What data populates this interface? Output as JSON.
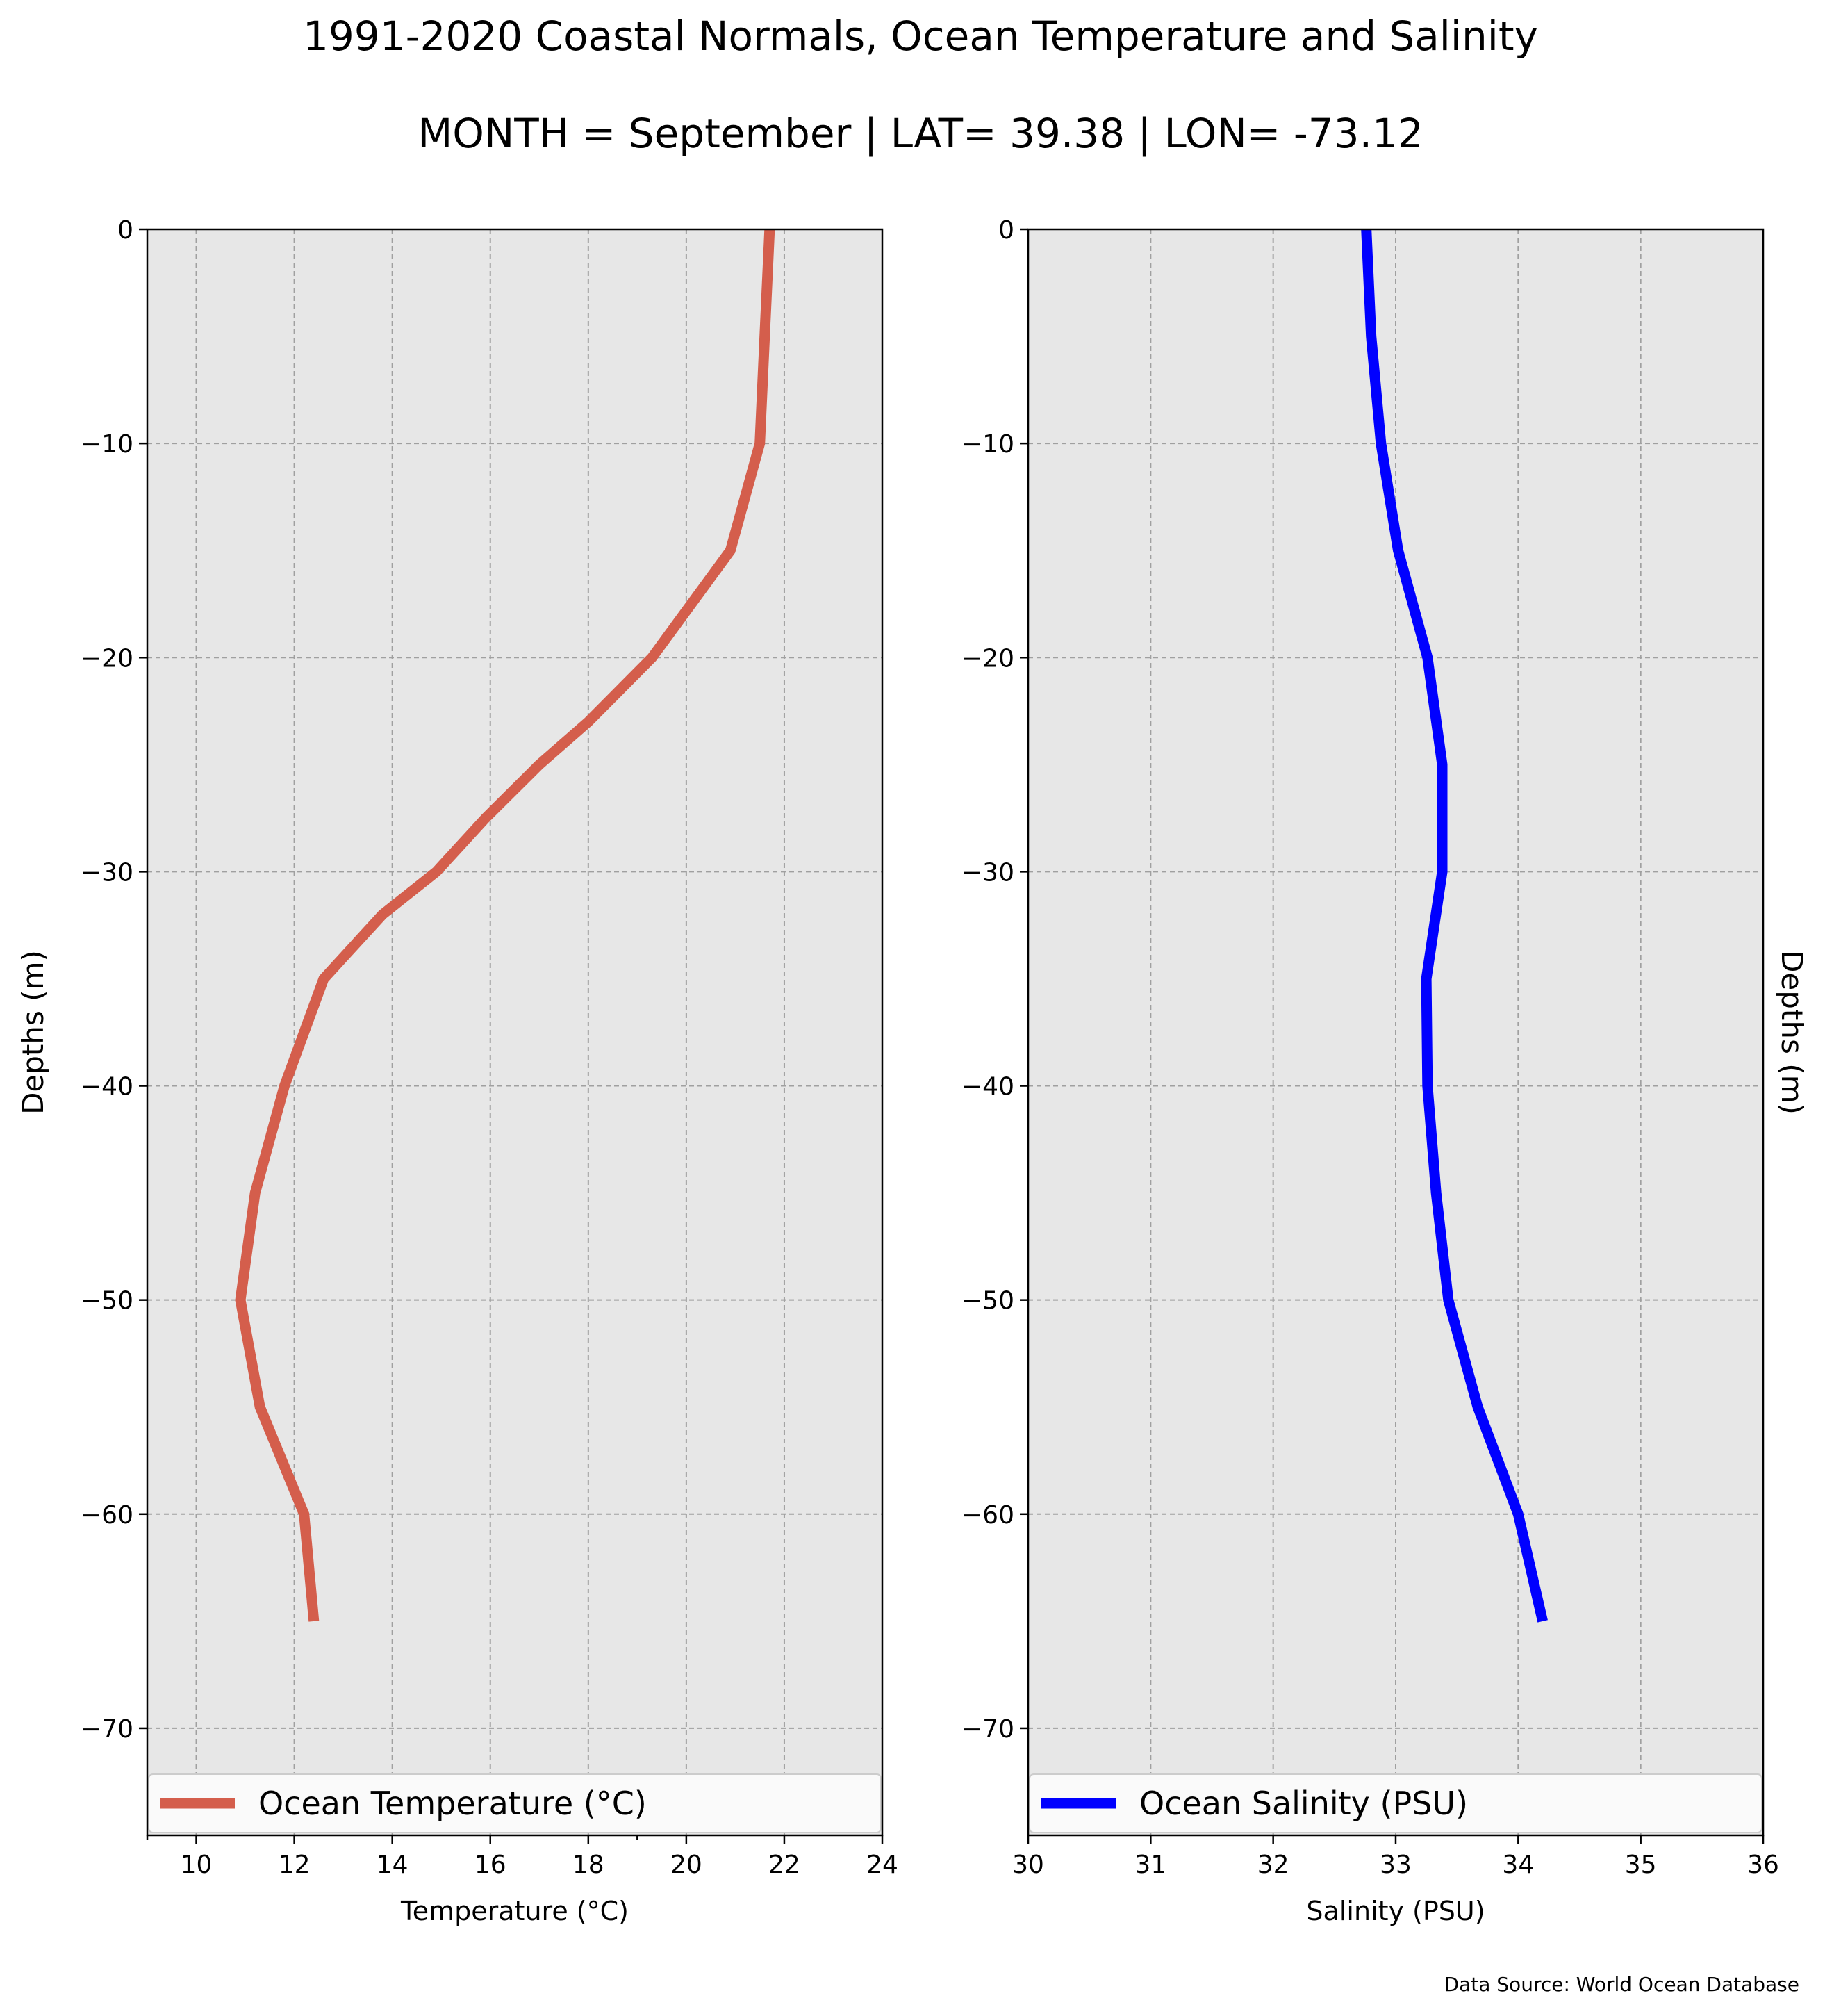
{
  "title": "1991-2020 Coastal Normals, Ocean Temperature and Salinity",
  "subtitle": "MONTH = September | LAT= 39.38 | LON= -73.12",
  "source": "Data Source: World Ocean Database",
  "chart_data": [
    {
      "type": "line",
      "xlabel": "Temperature (°C)",
      "ylabel": "Depths (m)",
      "xlim": [
        9,
        24
      ],
      "ylim": [
        -75,
        0
      ],
      "xticks": [
        10,
        12,
        14,
        16,
        18,
        20,
        22,
        24
      ],
      "minor_xticks": [
        9,
        19
      ],
      "yticks": [
        0,
        -10,
        -20,
        -30,
        -40,
        -50,
        -60,
        -70
      ],
      "ytick_labels": [
        "0",
        "−10",
        "−20",
        "−30",
        "−40",
        "−50",
        "−60",
        "−70"
      ],
      "grid": true,
      "legend": "lower center",
      "ylabel_side": "left",
      "series": [
        {
          "name": "Ocean Temperature (°C)",
          "color": "#d45e4c",
          "x": [
            21.7,
            21.6,
            21.5,
            20.9,
            19.3,
            18.0,
            17.0,
            15.9,
            14.9,
            13.8,
            12.6,
            11.8,
            11.2,
            10.9,
            11.3,
            12.2,
            12.4
          ],
          "y": [
            0,
            -5,
            -10,
            -15,
            -20,
            -23,
            -25,
            -27.5,
            -30,
            -32,
            -35,
            -40,
            -45,
            -50,
            -55,
            -60,
            -65
          ]
        }
      ]
    },
    {
      "type": "line",
      "xlabel": "Salinity (PSU)",
      "ylabel": "Depths (m)",
      "xlim": [
        30,
        36
      ],
      "ylim": [
        -75,
        0
      ],
      "xticks": [
        30,
        31,
        32,
        33,
        34,
        35,
        36
      ],
      "minor_xticks": [],
      "yticks": [
        0,
        -10,
        -20,
        -30,
        -40,
        -50,
        -60,
        -70
      ],
      "ytick_labels": [
        "0",
        "−10",
        "−20",
        "−30",
        "−40",
        "−50",
        "−60",
        "−70"
      ],
      "grid": true,
      "legend": "lower center",
      "ylabel_side": "right",
      "series": [
        {
          "name": "Ocean Salinity (PSU)",
          "color": "#0000ff",
          "x": [
            32.76,
            32.8,
            32.88,
            33.02,
            33.26,
            33.38,
            33.38,
            33.25,
            33.26,
            33.33,
            33.43,
            33.67,
            34.0,
            34.2
          ],
          "y": [
            0,
            -5,
            -10,
            -15,
            -20,
            -25,
            -30,
            -35,
            -40,
            -45,
            -50,
            -55,
            -60,
            -65
          ]
        }
      ]
    }
  ]
}
